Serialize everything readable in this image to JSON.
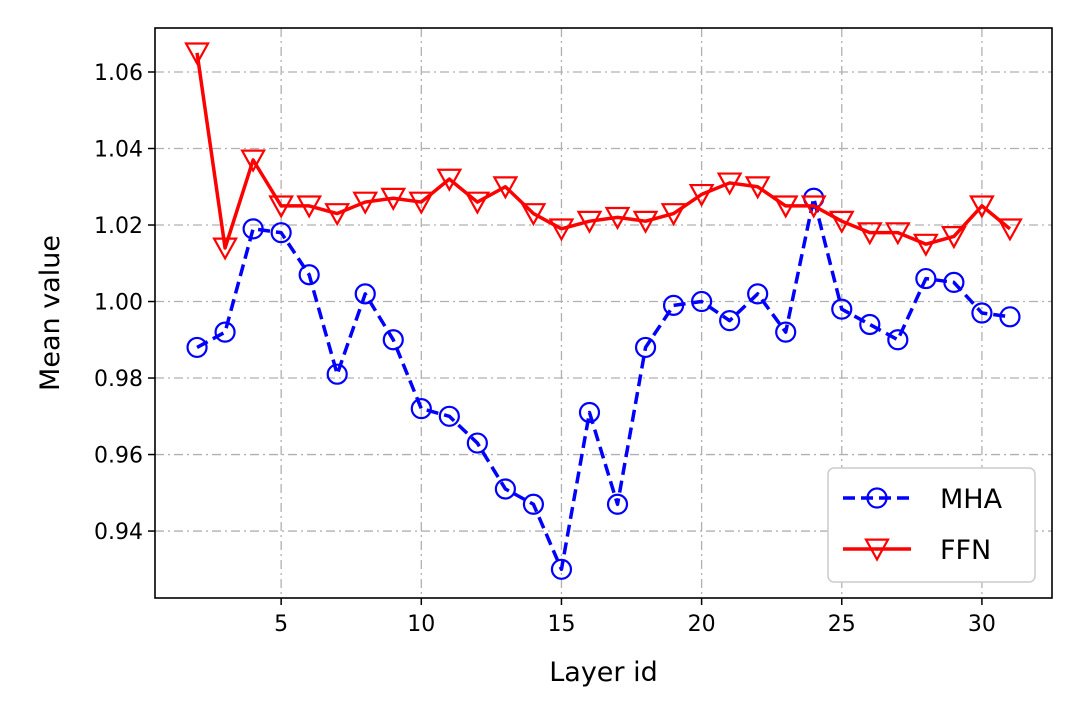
{
  "chart_data": {
    "type": "line",
    "title": "",
    "xlabel": "Layer id",
    "ylabel": "Mean value",
    "xlim": [
      0.5,
      32.5
    ],
    "ylim": [
      0.9225,
      1.0715
    ],
    "x_ticks": [
      5,
      10,
      15,
      20,
      25,
      30
    ],
    "x_tick_labels": [
      "5",
      "10",
      "15",
      "20",
      "25",
      "30"
    ],
    "y_ticks": [
      0.94,
      0.96,
      0.98,
      1.0,
      1.02,
      1.04,
      1.06
    ],
    "y_tick_labels": [
      "0.94",
      "0.96",
      "0.98",
      "1.00",
      "1.02",
      "1.04",
      "1.06"
    ],
    "grid": true,
    "legend_position": "lower-right",
    "x": [
      2,
      3,
      4,
      5,
      6,
      7,
      8,
      9,
      10,
      11,
      12,
      13,
      14,
      15,
      16,
      17,
      18,
      19,
      20,
      21,
      22,
      23,
      24,
      25,
      26,
      27,
      28,
      29,
      30,
      31
    ],
    "series": [
      {
        "name": "MHA",
        "color": "#0000ff",
        "line_style": "dashed",
        "marker": "circle",
        "values": [
          0.988,
          0.992,
          1.019,
          1.018,
          1.007,
          0.981,
          1.002,
          0.99,
          0.972,
          0.97,
          0.963,
          0.951,
          0.947,
          0.93,
          0.971,
          0.947,
          0.988,
          0.999,
          1.0,
          0.995,
          1.002,
          0.992,
          1.027,
          0.998,
          0.994,
          0.99,
          1.006,
          1.005,
          0.997,
          0.996
        ]
      },
      {
        "name": "FFN",
        "color": "#ff0000",
        "line_style": "solid",
        "marker": "triangle-down",
        "values": [
          1.065,
          1.014,
          1.037,
          1.025,
          1.025,
          1.023,
          1.026,
          1.027,
          1.026,
          1.032,
          1.026,
          1.03,
          1.023,
          1.019,
          1.021,
          1.022,
          1.021,
          1.023,
          1.028,
          1.031,
          1.03,
          1.025,
          1.025,
          1.021,
          1.018,
          1.018,
          1.015,
          1.017,
          1.025,
          1.019
        ]
      }
    ]
  }
}
